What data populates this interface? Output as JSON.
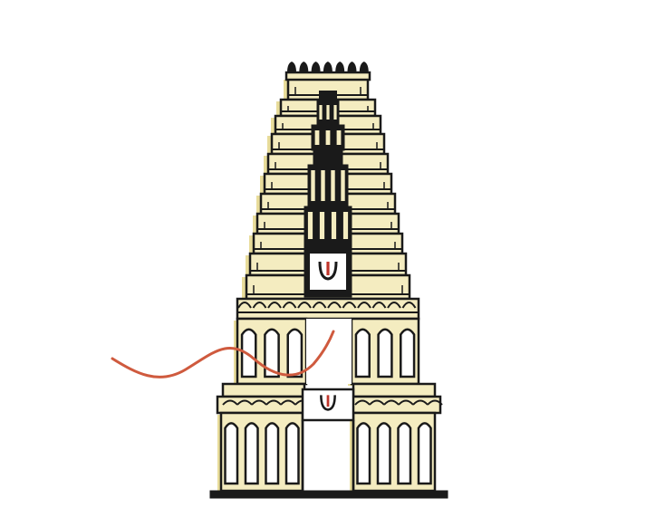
{
  "scene": {
    "subject": "temple-gopuram-illustration",
    "icons": [
      "gopuram-icon",
      "namam-symbol-icon",
      "wavy-line-icon"
    ],
    "colors": {
      "background": "#ffffff",
      "outline": "#1a1a1a",
      "cream": "#f4ecc0",
      "cream_shadow": "#e8dc9a",
      "namam_red": "#c0352b",
      "ribbon": "#cf5a3e"
    }
  }
}
